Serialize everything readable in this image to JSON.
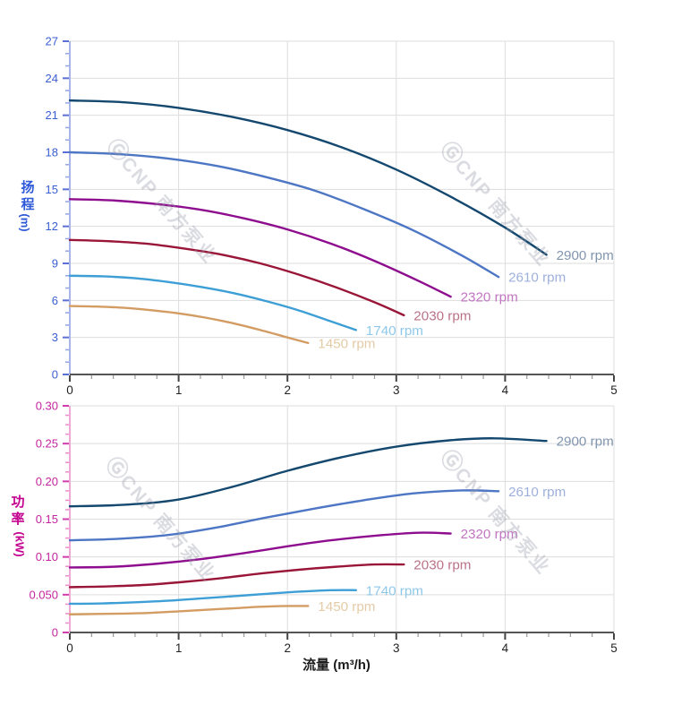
{
  "watermark": {
    "logo": "Ⓖ",
    "text": "CNP 南方泵业"
  },
  "x_axis": {
    "title": "流量 (m³/h)",
    "min": 0,
    "max": 5,
    "tick_values": [
      0,
      1,
      2,
      3,
      4,
      5
    ],
    "tick_labels": [
      "0",
      "1",
      "2",
      "3",
      "4",
      "5"
    ],
    "minor_step": 0.2,
    "label_color": "#222222"
  },
  "chart_data": [
    {
      "type": "line",
      "name": "head-vs-flow",
      "ylabel": "扬程 (m)",
      "ylabel_chars": [
        "扬",
        "程"
      ],
      "ylabel_unit": "(m)",
      "xlabel": "流量 (m³/h)",
      "xlim": [
        0,
        5
      ],
      "ylim": [
        0,
        27
      ],
      "grid": true,
      "legend_position": "curve-ends",
      "y_tick_values": [
        0,
        3,
        6,
        9,
        12,
        15,
        18,
        21,
        24,
        27
      ],
      "y_tick_labels": [
        "0",
        "3",
        "6",
        "9",
        "12",
        "15",
        "18",
        "21",
        "24",
        "27"
      ],
      "y_minor_step": 1,
      "axis_colors": {
        "title": "#2E59D9",
        "text": "#3A5FD1",
        "line": "#A9B4E8",
        "major_tick": "#5A6FD8",
        "minor_tick": "#93A3E8"
      },
      "series": [
        {
          "label": "2900 rpm",
          "color": "#14486F",
          "label_color": "#8195AE",
          "points": [
            [
              0,
              22.2
            ],
            [
              0.5,
              22.05
            ],
            [
              1,
              21.6
            ],
            [
              1.5,
              20.85
            ],
            [
              2,
              19.8
            ],
            [
              2.5,
              18.4
            ],
            [
              3,
              16.6
            ],
            [
              3.5,
              14.4
            ],
            [
              4,
              11.9
            ],
            [
              4.38,
              9.7
            ]
          ]
        },
        {
          "label": "2610 rpm",
          "color": "#4D76C4",
          "label_color": "#9DB0DC",
          "points": [
            [
              0,
              18.0
            ],
            [
              0.45,
              17.85
            ],
            [
              0.9,
              17.5
            ],
            [
              1.35,
              16.9
            ],
            [
              1.8,
              16.0
            ],
            [
              2.25,
              14.9
            ],
            [
              2.7,
              13.4
            ],
            [
              3.15,
              11.7
            ],
            [
              3.6,
              9.65
            ],
            [
              3.94,
              7.9
            ]
          ]
        },
        {
          "label": "2320 rpm",
          "color": "#8E0D8E",
          "label_color": "#C275C2",
          "points": [
            [
              0,
              14.2
            ],
            [
              0.4,
              14.1
            ],
            [
              0.8,
              13.8
            ],
            [
              1.2,
              13.35
            ],
            [
              1.6,
              12.65
            ],
            [
              2,
              11.75
            ],
            [
              2.4,
              10.6
            ],
            [
              2.8,
              9.2
            ],
            [
              3.2,
              7.6
            ],
            [
              3.5,
              6.3
            ]
          ]
        },
        {
          "label": "2030 rpm",
          "color": "#9A1638",
          "label_color": "#BA7287",
          "points": [
            [
              0,
              10.9
            ],
            [
              0.35,
              10.8
            ],
            [
              0.7,
              10.6
            ],
            [
              1.05,
              10.2
            ],
            [
              1.4,
              9.7
            ],
            [
              1.75,
              9.0
            ],
            [
              2.1,
              8.1
            ],
            [
              2.45,
              7.05
            ],
            [
              2.8,
              5.85
            ],
            [
              3.07,
              4.8
            ]
          ]
        },
        {
          "label": "1740 rpm",
          "color": "#3D9FD6",
          "label_color": "#8EC8EA",
          "points": [
            [
              0,
              8.0
            ],
            [
              0.3,
              7.95
            ],
            [
              0.6,
              7.8
            ],
            [
              0.9,
              7.5
            ],
            [
              1.2,
              7.1
            ],
            [
              1.5,
              6.6
            ],
            [
              1.8,
              5.95
            ],
            [
              2.1,
              5.2
            ],
            [
              2.4,
              4.3
            ],
            [
              2.63,
              3.6
            ]
          ]
        },
        {
          "label": "1450 rpm",
          "color": "#D29C62",
          "label_color": "#E4CBA6",
          "points": [
            [
              0,
              5.55
            ],
            [
              0.25,
              5.5
            ],
            [
              0.5,
              5.4
            ],
            [
              0.75,
              5.2
            ],
            [
              1,
              4.95
            ],
            [
              1.25,
              4.6
            ],
            [
              1.5,
              4.15
            ],
            [
              1.75,
              3.6
            ],
            [
              2,
              3.0
            ],
            [
              2.19,
              2.55
            ]
          ]
        }
      ]
    },
    {
      "type": "line",
      "name": "power-vs-flow",
      "ylabel": "功率 (kW)",
      "ylabel_chars": [
        "功",
        "率"
      ],
      "ylabel_unit": "(kW)",
      "xlabel": "流量 (m³/h)",
      "xlim": [
        0,
        5
      ],
      "ylim": [
        0,
        0.3
      ],
      "grid": true,
      "legend_position": "curve-ends",
      "y_tick_values": [
        0,
        0.05,
        0.1,
        0.15,
        0.2,
        0.25,
        0.3
      ],
      "y_tick_labels": [
        "0",
        "0.050",
        "0.10",
        "0.15",
        "0.20",
        "0.25",
        "0.30"
      ],
      "y_minor_step": 0.0125,
      "axis_colors": {
        "title": "#C4008F",
        "text": "#C4259E",
        "line": "#F0A8D5",
        "major_tick": "#D23DAD",
        "minor_tick": "#F08CCB"
      },
      "series": [
        {
          "label": "2900 rpm",
          "color": "#14486F",
          "label_color": "#8195AE",
          "points": [
            [
              0,
              0.167
            ],
            [
              0.5,
              0.169
            ],
            [
              1,
              0.176
            ],
            [
              1.5,
              0.193
            ],
            [
              2,
              0.214
            ],
            [
              2.5,
              0.232
            ],
            [
              3,
              0.246
            ],
            [
              3.5,
              0.2545
            ],
            [
              3.9,
              0.257
            ],
            [
              4.38,
              0.2535
            ]
          ]
        },
        {
          "label": "2610 rpm",
          "color": "#4D76C4",
          "label_color": "#9DB0DC",
          "points": [
            [
              0,
              0.122
            ],
            [
              0.45,
              0.124
            ],
            [
              0.9,
              0.129
            ],
            [
              1.35,
              0.139
            ],
            [
              1.8,
              0.152
            ],
            [
              2.25,
              0.164
            ],
            [
              2.7,
              0.175
            ],
            [
              3.15,
              0.184
            ],
            [
              3.6,
              0.188
            ],
            [
              3.94,
              0.187
            ]
          ]
        },
        {
          "label": "2320 rpm",
          "color": "#8E0D8E",
          "label_color": "#C275C2",
          "points": [
            [
              0,
              0.086
            ],
            [
              0.4,
              0.087
            ],
            [
              0.8,
              0.091
            ],
            [
              1.2,
              0.097
            ],
            [
              1.6,
              0.105
            ],
            [
              2,
              0.114
            ],
            [
              2.4,
              0.122
            ],
            [
              2.8,
              0.128
            ],
            [
              3.2,
              0.132
            ],
            [
              3.5,
              0.131
            ]
          ]
        },
        {
          "label": "2030 rpm",
          "color": "#9A1638",
          "label_color": "#BA7287",
          "points": [
            [
              0,
              0.06
            ],
            [
              0.35,
              0.061
            ],
            [
              0.7,
              0.063
            ],
            [
              1.05,
              0.067
            ],
            [
              1.4,
              0.072
            ],
            [
              1.75,
              0.078
            ],
            [
              2.1,
              0.083
            ],
            [
              2.45,
              0.087
            ],
            [
              2.8,
              0.09
            ],
            [
              3.07,
              0.09
            ]
          ]
        },
        {
          "label": "1740 rpm",
          "color": "#3D9FD6",
          "label_color": "#8EC8EA",
          "points": [
            [
              0,
              0.038
            ],
            [
              0.3,
              0.0385
            ],
            [
              0.6,
              0.04
            ],
            [
              0.9,
              0.042
            ],
            [
              1.2,
              0.045
            ],
            [
              1.5,
              0.048
            ],
            [
              1.8,
              0.051
            ],
            [
              2.1,
              0.054
            ],
            [
              2.4,
              0.056
            ],
            [
              2.63,
              0.056
            ]
          ]
        },
        {
          "label": "1450 rpm",
          "color": "#D29C62",
          "label_color": "#E4CBA6",
          "points": [
            [
              0,
              0.024
            ],
            [
              0.25,
              0.0245
            ],
            [
              0.5,
              0.025
            ],
            [
              0.75,
              0.026
            ],
            [
              1,
              0.028
            ],
            [
              1.25,
              0.03
            ],
            [
              1.5,
              0.032
            ],
            [
              1.75,
              0.034
            ],
            [
              2,
              0.035
            ],
            [
              2.19,
              0.035
            ]
          ]
        }
      ]
    }
  ]
}
